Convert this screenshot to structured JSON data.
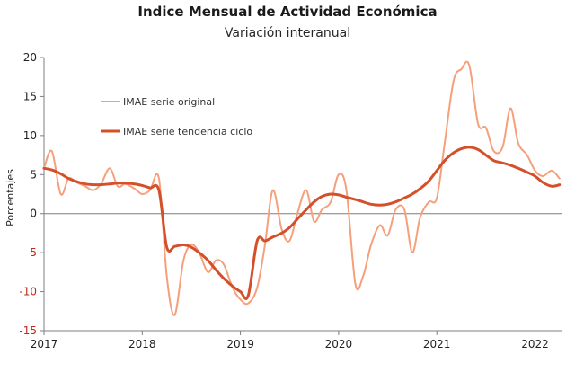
{
  "chart_data": {
    "type": "line",
    "title": "Indice Mensual de  Actividad Económica",
    "subtitle": "Variación interanual",
    "xlabel": "",
    "ylabel": "Porcentajes",
    "ylim": [
      -15,
      20
    ],
    "xlim": [
      2017.0,
      2022.27
    ],
    "y_ticks": [
      -15,
      -10,
      -5,
      0,
      5,
      10,
      15,
      20
    ],
    "x_ticks": [
      2017,
      2018,
      2019,
      2020,
      2021,
      2022
    ],
    "grid": false,
    "legend_position": "top-left",
    "series": [
      {
        "name": "IMAE serie original",
        "color": "#f5a07c",
        "x": [
          2017.0,
          2017.08,
          2017.17,
          2017.25,
          2017.33,
          2017.42,
          2017.5,
          2017.58,
          2017.67,
          2017.75,
          2017.83,
          2017.92,
          2018.0,
          2018.08,
          2018.17,
          2018.25,
          2018.33,
          2018.42,
          2018.5,
          2018.58,
          2018.67,
          2018.75,
          2018.83,
          2018.92,
          2019.0,
          2019.08,
          2019.17,
          2019.25,
          2019.33,
          2019.42,
          2019.5,
          2019.58,
          2019.67,
          2019.75,
          2019.83,
          2019.92,
          2020.0,
          2020.08,
          2020.17,
          2020.25,
          2020.33,
          2020.42,
          2020.5,
          2020.58,
          2020.67,
          2020.75,
          2020.83,
          2020.92,
          2021.0,
          2021.08,
          2021.17,
          2021.25,
          2021.33,
          2021.42,
          2021.5,
          2021.58,
          2021.67,
          2021.75,
          2021.83,
          2021.92,
          2022.0,
          2022.08,
          2022.17,
          2022.25
        ],
        "values": [
          5.8,
          8.0,
          2.5,
          4.5,
          4.0,
          3.5,
          3.0,
          3.8,
          5.8,
          3.5,
          3.8,
          3.2,
          2.5,
          3.0,
          4.5,
          -8.0,
          -13.0,
          -6.0,
          -4.0,
          -5.0,
          -7.5,
          -6.0,
          -6.5,
          -9.5,
          -11.0,
          -11.5,
          -9.5,
          -4.0,
          3.0,
          -2.0,
          -3.5,
          0.0,
          3.0,
          -1.0,
          0.5,
          1.5,
          5.0,
          3.0,
          -9.0,
          -8.0,
          -4.0,
          -1.5,
          -2.8,
          0.5,
          0.5,
          -5.0,
          -0.5,
          1.5,
          2.0,
          9.0,
          17.0,
          18.5,
          19.0,
          11.5,
          11.0,
          8.0,
          8.5,
          13.5,
          9.0,
          7.5,
          5.5,
          4.8,
          5.5,
          4.5
        ]
      },
      {
        "name": "IMAE serie  tendencia ciclo",
        "color": "#d4502a",
        "x": [
          2017.0,
          2017.08,
          2017.17,
          2017.25,
          2017.33,
          2017.42,
          2017.5,
          2017.58,
          2017.67,
          2017.75,
          2017.83,
          2017.92,
          2018.0,
          2018.08,
          2018.17,
          2018.25,
          2018.33,
          2018.42,
          2018.5,
          2018.58,
          2018.67,
          2018.75,
          2018.83,
          2018.92,
          2019.0,
          2019.08,
          2019.17,
          2019.25,
          2019.33,
          2019.42,
          2019.5,
          2019.58,
          2019.67,
          2019.75,
          2019.83,
          2019.92,
          2020.0,
          2020.08,
          2020.17,
          2020.25,
          2020.33,
          2020.42,
          2020.5,
          2020.58,
          2020.67,
          2020.75,
          2020.83,
          2020.92,
          2021.0,
          2021.08,
          2021.17,
          2021.25,
          2021.33,
          2021.42,
          2021.5,
          2021.58,
          2021.67,
          2021.75,
          2021.83,
          2021.92,
          2022.0,
          2022.08,
          2022.17,
          2022.25
        ],
        "values": [
          5.8,
          5.6,
          5.1,
          4.5,
          4.1,
          3.8,
          3.7,
          3.7,
          3.8,
          3.9,
          3.9,
          3.8,
          3.6,
          3.3,
          3.0,
          -4.3,
          -4.2,
          -4.0,
          -4.3,
          -5.0,
          -6.0,
          -7.2,
          -8.3,
          -9.3,
          -10.0,
          -10.5,
          -3.5,
          -3.5,
          -3.0,
          -2.5,
          -1.8,
          -0.7,
          0.5,
          1.5,
          2.2,
          2.5,
          2.4,
          2.1,
          1.8,
          1.5,
          1.2,
          1.1,
          1.2,
          1.5,
          2.0,
          2.5,
          3.2,
          4.2,
          5.5,
          6.8,
          7.8,
          8.3,
          8.5,
          8.2,
          7.5,
          6.8,
          6.5,
          6.2,
          5.8,
          5.3,
          4.8,
          4.0,
          3.5,
          3.7
        ]
      }
    ]
  }
}
